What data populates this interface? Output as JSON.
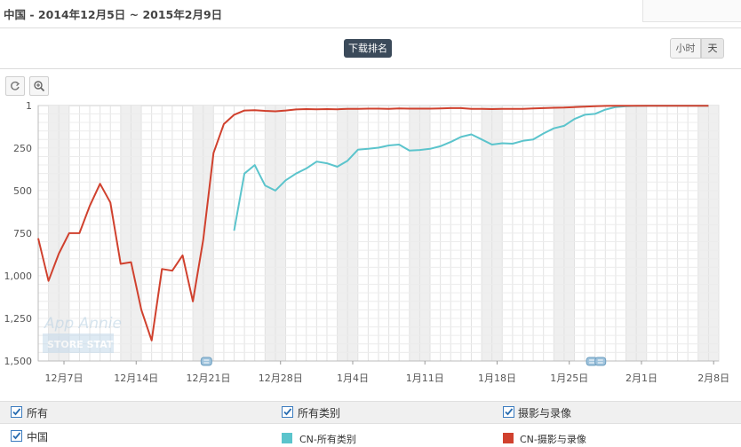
{
  "header": {
    "title": "中国 - 2014年12月5日 ~ 2015年2月9日"
  },
  "toolbar": {
    "download_rank": "下载排名",
    "hour_label": "小时",
    "day_label": "天"
  },
  "watermark": {
    "line1": "App Annie",
    "line2": "STORE STATS"
  },
  "legend": {
    "row1": {
      "all": "所有",
      "all_categories": "所有类别",
      "photo_video": "摄影与录像"
    },
    "row2": {
      "country": "中国",
      "series_a": "CN-所有类别",
      "series_b": "CN-摄影与录像"
    }
  },
  "colors": {
    "series_a": "#5bc4cc",
    "series_b": "#d0412e"
  },
  "chart_data": {
    "type": "line",
    "x_start": "2014-12-05",
    "xlim": [
      "2014-12-05",
      "2015-02-09"
    ],
    "xticks": [
      "12月7日",
      "12月14日",
      "12月21日",
      "12月28日",
      "1月4日",
      "1月11日",
      "1月18日",
      "1月25日",
      "2月1日",
      "2月8日"
    ],
    "y_reversed": true,
    "ylim": [
      1,
      1500
    ],
    "yticks": [
      "1",
      "250",
      "500",
      "750",
      "1,000",
      "1,250",
      "1,500"
    ],
    "grid": true,
    "series": [
      {
        "name": "CN-摄影与录像",
        "color": "#d0412e",
        "points": [
          [
            "2014-12-05",
            780
          ],
          [
            "2014-12-06",
            1030
          ],
          [
            "2014-12-07",
            870
          ],
          [
            "2014-12-08",
            750
          ],
          [
            "2014-12-09",
            750
          ],
          [
            "2014-12-10",
            590
          ],
          [
            "2014-12-11",
            460
          ],
          [
            "2014-12-12",
            570
          ],
          [
            "2014-12-13",
            930
          ],
          [
            "2014-12-14",
            920
          ],
          [
            "2014-12-15",
            1200
          ],
          [
            "2014-12-16",
            1380
          ],
          [
            "2014-12-17",
            960
          ],
          [
            "2014-12-18",
            970
          ],
          [
            "2014-12-19",
            880
          ],
          [
            "2014-12-20",
            1150
          ],
          [
            "2014-12-21",
            790
          ],
          [
            "2014-12-22",
            280
          ],
          [
            "2014-12-23",
            110
          ],
          [
            "2014-12-24",
            55
          ],
          [
            "2014-12-25",
            30
          ],
          [
            "2014-12-26",
            28
          ],
          [
            "2014-12-27",
            32
          ],
          [
            "2014-12-28",
            35
          ],
          [
            "2014-12-29",
            30
          ],
          [
            "2014-12-30",
            24
          ],
          [
            "2014-12-31",
            22
          ],
          [
            "2015-01-01",
            23
          ],
          [
            "2015-01-02",
            22
          ],
          [
            "2015-01-03",
            23
          ],
          [
            "2015-01-04",
            21
          ],
          [
            "2015-01-05",
            20
          ],
          [
            "2015-01-06",
            19
          ],
          [
            "2015-01-07",
            19
          ],
          [
            "2015-01-08",
            20
          ],
          [
            "2015-01-09",
            18
          ],
          [
            "2015-01-10",
            19
          ],
          [
            "2015-01-11",
            19
          ],
          [
            "2015-01-12",
            19
          ],
          [
            "2015-01-13",
            18
          ],
          [
            "2015-01-14",
            16
          ],
          [
            "2015-01-15",
            16
          ],
          [
            "2015-01-16",
            20
          ],
          [
            "2015-01-17",
            21
          ],
          [
            "2015-01-18",
            22
          ],
          [
            "2015-01-19",
            21
          ],
          [
            "2015-01-20",
            20
          ],
          [
            "2015-01-21",
            20
          ],
          [
            "2015-01-22",
            18
          ],
          [
            "2015-01-23",
            16
          ],
          [
            "2015-01-24",
            14
          ],
          [
            "2015-01-25",
            13
          ],
          [
            "2015-01-26",
            10
          ],
          [
            "2015-01-27",
            8
          ],
          [
            "2015-01-28",
            5
          ],
          [
            "2015-01-29",
            3
          ],
          [
            "2015-01-30",
            2
          ],
          [
            "2015-01-31",
            2
          ],
          [
            "2015-02-01",
            2
          ],
          [
            "2015-02-02",
            2
          ],
          [
            "2015-02-03",
            2
          ],
          [
            "2015-02-04",
            2
          ],
          [
            "2015-02-05",
            2
          ],
          [
            "2015-02-06",
            2
          ],
          [
            "2015-02-07",
            2
          ],
          [
            "2015-02-08",
            2
          ]
        ]
      },
      {
        "name": "CN-所有类别",
        "color": "#5bc4cc",
        "points": [
          [
            "2014-12-24",
            735
          ],
          [
            "2014-12-25",
            400
          ],
          [
            "2014-12-26",
            350
          ],
          [
            "2014-12-27",
            470
          ],
          [
            "2014-12-28",
            500
          ],
          [
            "2014-12-29",
            440
          ],
          [
            "2014-12-30",
            400
          ],
          [
            "2014-12-31",
            370
          ],
          [
            "2015-01-01",
            330
          ],
          [
            "2015-01-02",
            340
          ],
          [
            "2015-01-03",
            360
          ],
          [
            "2015-01-04",
            325
          ],
          [
            "2015-01-05",
            260
          ],
          [
            "2015-01-06",
            255
          ],
          [
            "2015-01-07",
            248
          ],
          [
            "2015-01-08",
            235
          ],
          [
            "2015-01-09",
            230
          ],
          [
            "2015-01-10",
            265
          ],
          [
            "2015-01-11",
            262
          ],
          [
            "2015-01-12",
            255
          ],
          [
            "2015-01-13",
            240
          ],
          [
            "2015-01-14",
            215
          ],
          [
            "2015-01-15",
            185
          ],
          [
            "2015-01-16",
            170
          ],
          [
            "2015-01-17",
            200
          ],
          [
            "2015-01-18",
            230
          ],
          [
            "2015-01-19",
            222
          ],
          [
            "2015-01-20",
            225
          ],
          [
            "2015-01-21",
            208
          ],
          [
            "2015-01-22",
            200
          ],
          [
            "2015-01-23",
            165
          ],
          [
            "2015-01-24",
            135
          ],
          [
            "2015-01-25",
            120
          ],
          [
            "2015-01-26",
            80
          ],
          [
            "2015-01-27",
            55
          ],
          [
            "2015-01-28",
            50
          ],
          [
            "2015-01-29",
            25
          ],
          [
            "2015-01-30",
            10
          ],
          [
            "2015-01-31",
            5
          ],
          [
            "2015-02-01",
            3
          ],
          [
            "2015-02-02",
            2
          ],
          [
            "2015-02-03",
            2
          ],
          [
            "2015-02-04",
            2
          ],
          [
            "2015-02-05",
            2
          ],
          [
            "2015-02-06",
            2
          ],
          [
            "2015-02-07",
            2
          ],
          [
            "2015-02-08",
            2
          ]
        ]
      }
    ],
    "weekend_shading": true,
    "event_markers": [
      "2014-12-22",
      "2015-01-27",
      "2015-01-28"
    ]
  }
}
